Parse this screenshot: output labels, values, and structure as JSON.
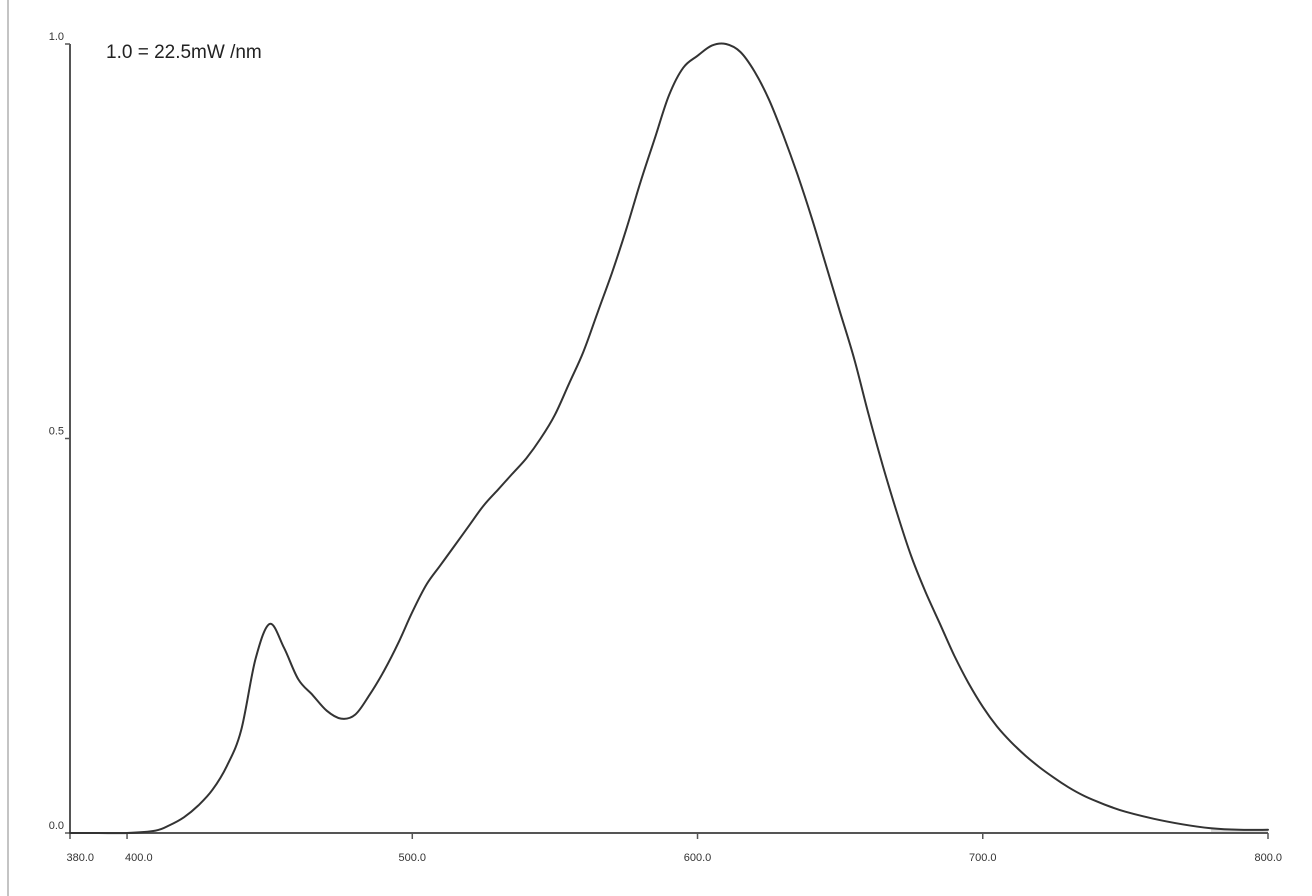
{
  "chart_data": {
    "type": "line",
    "title": "",
    "xlabel": "",
    "ylabel": "",
    "annotation": "1.0 = 22.5mW /nm",
    "xlim": [
      380.0,
      800.0
    ],
    "ylim": [
      0.0,
      1.0
    ],
    "x_ticks": [
      {
        "value": 380.0,
        "label": "380.0"
      },
      {
        "value": 400.0,
        "label": "400.0"
      },
      {
        "value": 500.0,
        "label": "500.0"
      },
      {
        "value": 600.0,
        "label": "600.0"
      },
      {
        "value": 700.0,
        "label": "700.0"
      },
      {
        "value": 800.0,
        "label": "800.0"
      }
    ],
    "y_ticks": [
      {
        "value": 0.0,
        "label": "0.0"
      },
      {
        "value": 0.5,
        "label": "0.5"
      },
      {
        "value": 1.0,
        "label": "1.0"
      }
    ],
    "grid": false,
    "colors": {
      "line": "#333333",
      "axis": "#555555",
      "background": "#ffffff",
      "fill": "#dddddd"
    },
    "series": [
      {
        "x": [
          380,
          390,
          400,
          410,
          415,
          420,
          425,
          430,
          435,
          440,
          445,
          450,
          455,
          460,
          465,
          470,
          475,
          480,
          485,
          490,
          495,
          500,
          505,
          510,
          515,
          520,
          525,
          530,
          535,
          540,
          545,
          550,
          555,
          560,
          565,
          570,
          575,
          580,
          585,
          590,
          595,
          600,
          605,
          610,
          615,
          620,
          625,
          630,
          635,
          640,
          645,
          650,
          655,
          660,
          665,
          670,
          675,
          680,
          685,
          690,
          695,
          700,
          705,
          710,
          715,
          720,
          725,
          730,
          735,
          740,
          745,
          750,
          760,
          770,
          780,
          790,
          800
        ],
        "y": [
          0.0,
          0.0,
          0.0,
          0.003,
          0.01,
          0.02,
          0.035,
          0.055,
          0.085,
          0.13,
          0.22,
          0.265,
          0.235,
          0.195,
          0.175,
          0.155,
          0.145,
          0.15,
          0.175,
          0.205,
          0.24,
          0.28,
          0.315,
          0.34,
          0.365,
          0.39,
          0.415,
          0.435,
          0.455,
          0.475,
          0.5,
          0.53,
          0.57,
          0.61,
          0.66,
          0.71,
          0.765,
          0.825,
          0.88,
          0.935,
          0.97,
          0.985,
          0.998,
          1.0,
          0.99,
          0.965,
          0.93,
          0.885,
          0.835,
          0.78,
          0.72,
          0.66,
          0.6,
          0.53,
          0.465,
          0.405,
          0.35,
          0.305,
          0.265,
          0.225,
          0.19,
          0.16,
          0.135,
          0.115,
          0.098,
          0.083,
          0.07,
          0.058,
          0.048,
          0.04,
          0.033,
          0.027,
          0.018,
          0.011,
          0.006,
          0.004,
          0.004
        ]
      }
    ]
  }
}
